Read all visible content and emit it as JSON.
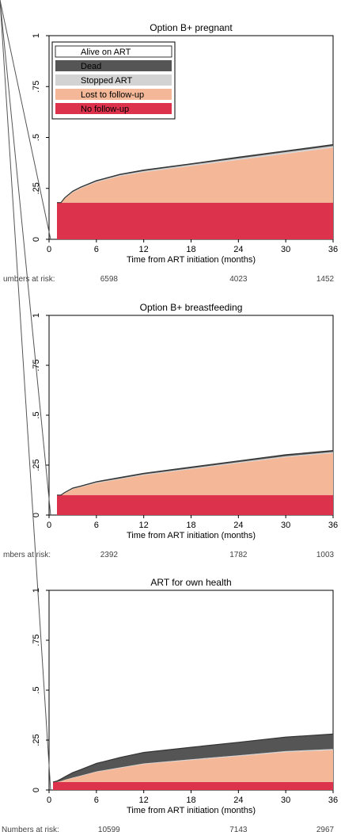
{
  "colors": {
    "alive": "#ffffff",
    "dead": "#555555",
    "stopped": "#d3d3d3",
    "lost": "#f4b898",
    "nofollow": "#dc324b",
    "axis": "#000000"
  },
  "legend": {
    "alive": "Alive on ART",
    "dead": "Dead",
    "stopped": "Stopped ART",
    "lost": "Lost to follow-up",
    "nofollow": "No follow-up"
  },
  "chart_data": [
    {
      "type": "area",
      "title": "Option B+ pregnant",
      "xlabel": "Time from ART initiation (months)",
      "ylabel": "",
      "xlim": [
        0,
        36
      ],
      "ylim": [
        0,
        1
      ],
      "xticks": [
        0,
        6,
        12,
        18,
        24,
        30,
        36
      ],
      "yticks": [
        0,
        0.25,
        0.5,
        0.75,
        1
      ],
      "ytick_labels": [
        "0",
        ".25",
        ".5",
        ".75",
        "1"
      ],
      "stacked_order": [
        "No follow-up",
        "Lost to follow-up",
        "Stopped ART",
        "Dead",
        "Alive on ART"
      ],
      "x": [
        1,
        1.5,
        2,
        3,
        4,
        6,
        9,
        12,
        18,
        24,
        30,
        36
      ],
      "series": [
        {
          "name": "No follow-up",
          "values": [
            0.18,
            0.18,
            0.18,
            0.18,
            0.18,
            0.18,
            0.18,
            0.18,
            0.18,
            0.18,
            0.18,
            0.18
          ]
        },
        {
          "name": "Lost to follow-up",
          "values": [
            0.0,
            0.0,
            0.02,
            0.05,
            0.07,
            0.1,
            0.13,
            0.15,
            0.18,
            0.21,
            0.24,
            0.27
          ]
        },
        {
          "name": "Stopped ART",
          "values": [
            0,
            0,
            0.002,
            0.003,
            0.003,
            0.004,
            0.005,
            0.005,
            0.006,
            0.007,
            0.008,
            0.008
          ]
        },
        {
          "name": "Dead",
          "values": [
            0,
            0,
            0.002,
            0.003,
            0.003,
            0.004,
            0.004,
            0.005,
            0.005,
            0.006,
            0.006,
            0.007
          ]
        }
      ],
      "at_risk_label": "umbers at risk:",
      "at_risk": [
        "6598",
        "4023",
        "1452"
      ],
      "legend_position": "top-left"
    },
    {
      "type": "area",
      "title": "Option B+ breastfeeding",
      "xlabel": "Time from ART initiation (months)",
      "ylabel": "",
      "xlim": [
        0,
        36
      ],
      "ylim": [
        0,
        1
      ],
      "xticks": [
        0,
        6,
        12,
        18,
        24,
        30,
        36
      ],
      "yticks": [
        0,
        0.25,
        0.5,
        0.75,
        1
      ],
      "ytick_labels": [
        "0",
        ".25",
        ".5",
        ".75",
        "1"
      ],
      "stacked_order": [
        "No follow-up",
        "Lost to follow-up",
        "Stopped ART",
        "Dead",
        "Alive on ART"
      ],
      "x": [
        1,
        1.5,
        2,
        3,
        4,
        6,
        9,
        12,
        18,
        24,
        30,
        36
      ],
      "series": [
        {
          "name": "No follow-up",
          "values": [
            0.1,
            0.1,
            0.1,
            0.1,
            0.1,
            0.1,
            0.1,
            0.1,
            0.1,
            0.1,
            0.1,
            0.1
          ]
        },
        {
          "name": "Lost to follow-up",
          "values": [
            0.0,
            0.0,
            0.01,
            0.03,
            0.04,
            0.06,
            0.08,
            0.1,
            0.13,
            0.16,
            0.19,
            0.21
          ]
        },
        {
          "name": "Stopped ART",
          "values": [
            0,
            0,
            0.001,
            0.002,
            0.002,
            0.003,
            0.003,
            0.004,
            0.004,
            0.005,
            0.005,
            0.006
          ]
        },
        {
          "name": "Dead",
          "values": [
            0,
            0,
            0.002,
            0.003,
            0.003,
            0.004,
            0.005,
            0.005,
            0.006,
            0.006,
            0.007,
            0.007
          ]
        }
      ],
      "at_risk_label": "mbers at risk:",
      "at_risk": [
        "2392",
        "1782",
        "1003"
      ]
    },
    {
      "type": "area",
      "title": "ART for own health",
      "xlabel": "Time from ART initiation (months)",
      "ylabel": "",
      "xlim": [
        0,
        36
      ],
      "ylim": [
        0,
        1
      ],
      "xticks": [
        0,
        6,
        12,
        18,
        24,
        30,
        36
      ],
      "yticks": [
        0,
        0.25,
        0.5,
        0.75,
        1
      ],
      "ytick_labels": [
        "0",
        ".25",
        ".5",
        ".75",
        "1"
      ],
      "stacked_order": [
        "No follow-up",
        "Lost to follow-up",
        "Stopped ART",
        "Dead",
        "Alive on ART"
      ],
      "x": [
        0.5,
        1,
        1.5,
        2,
        3,
        4,
        6,
        9,
        12,
        18,
        24,
        30,
        36
      ],
      "series": [
        {
          "name": "No follow-up",
          "values": [
            0.04,
            0.04,
            0.04,
            0.04,
            0.04,
            0.04,
            0.04,
            0.04,
            0.04,
            0.04,
            0.04,
            0.04,
            0.04
          ]
        },
        {
          "name": "Lost to follow-up",
          "values": [
            0.0,
            0.0,
            0.005,
            0.01,
            0.02,
            0.03,
            0.05,
            0.07,
            0.09,
            0.11,
            0.13,
            0.15,
            0.16
          ]
        },
        {
          "name": "Stopped ART",
          "values": [
            0,
            0,
            0,
            0.001,
            0.002,
            0.002,
            0.003,
            0.003,
            0.003,
            0.004,
            0.004,
            0.005,
            0.005
          ]
        },
        {
          "name": "Dead",
          "values": [
            0,
            0.005,
            0.01,
            0.015,
            0.025,
            0.03,
            0.04,
            0.05,
            0.055,
            0.06,
            0.065,
            0.07,
            0.075
          ]
        }
      ],
      "at_risk_label": "Numbers at risk:",
      "at_risk": [
        "10599",
        "7143",
        "2967"
      ]
    }
  ]
}
